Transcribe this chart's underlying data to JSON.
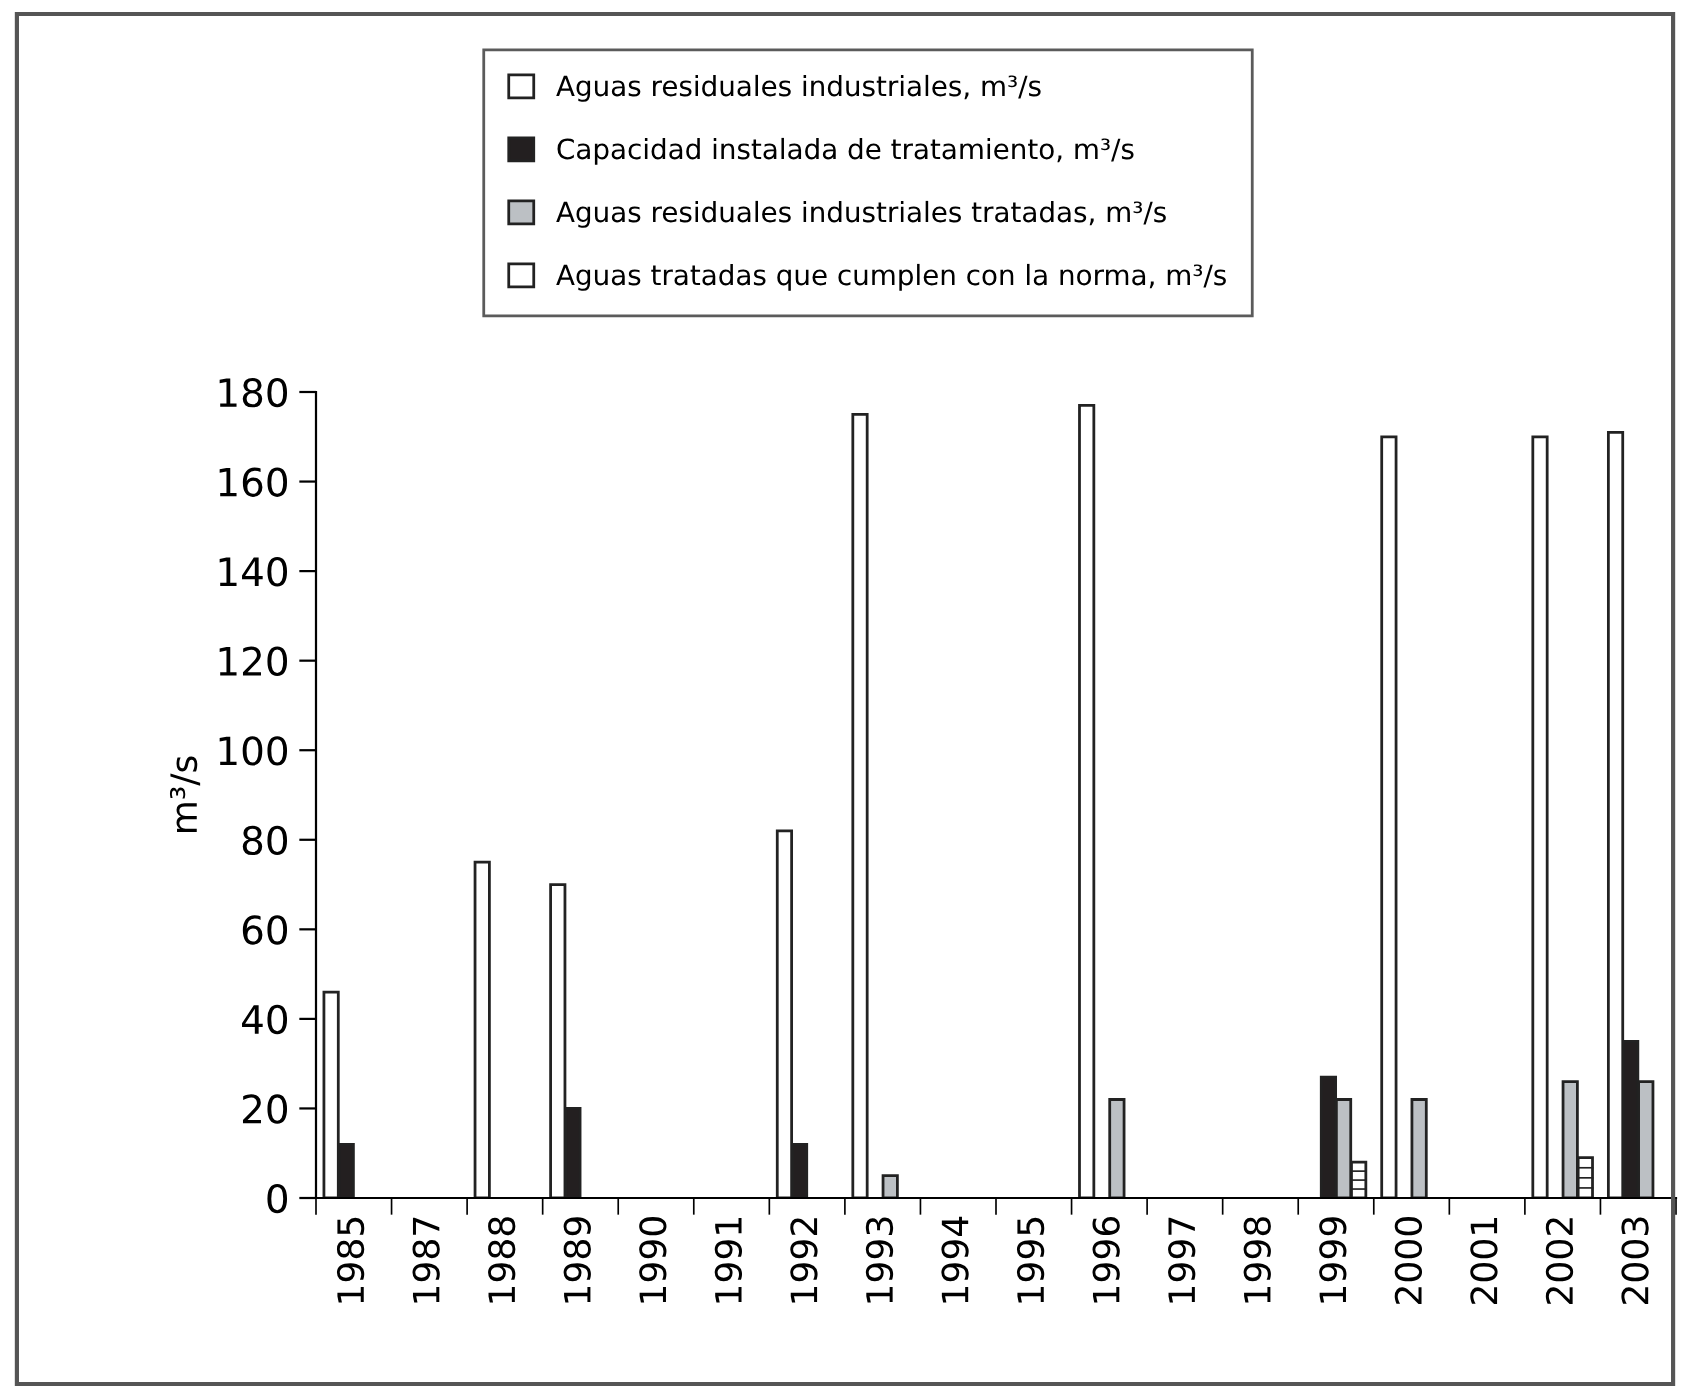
{
  "chart_data": {
    "type": "bar",
    "ylabel": "m³/s",
    "categories": [
      "1985",
      "1987",
      "1988",
      "1989",
      "1990",
      "1991",
      "1992",
      "1993",
      "1994",
      "1995",
      "1996",
      "1997",
      "1998",
      "1999",
      "2000",
      "2001",
      "2002",
      "2003"
    ],
    "series": [
      {
        "name": "Aguas residuales industriales, m³/s",
        "color": "#ffffff",
        "values": [
          46,
          null,
          75,
          70,
          null,
          null,
          82,
          175,
          null,
          null,
          177,
          null,
          null,
          null,
          170,
          null,
          170,
          171
        ]
      },
      {
        "name": "Capacidad instalada de tratamiento, m³/s",
        "color": "#231f20",
        "values": [
          12,
          null,
          null,
          20,
          null,
          null,
          12,
          null,
          null,
          null,
          null,
          null,
          null,
          27,
          null,
          null,
          null,
          35
        ]
      },
      {
        "name": "Aguas residuales industriales tratadas, m³/s",
        "color": "#bcc0c4",
        "values": [
          null,
          null,
          null,
          null,
          null,
          null,
          null,
          5,
          null,
          null,
          22,
          null,
          null,
          22,
          22,
          null,
          26,
          26
        ]
      },
      {
        "name": "Aguas tratadas que cumplen con la norma, m³/s",
        "color": "#ffffff",
        "values": [
          null,
          null,
          null,
          null,
          null,
          null,
          null,
          null,
          null,
          null,
          null,
          null,
          null,
          8,
          null,
          null,
          9,
          null
        ]
      }
    ],
    "ylim": [
      0,
      180
    ],
    "yticks": [
      0,
      20,
      40,
      60,
      80,
      100,
      120,
      140,
      160,
      180
    ],
    "grid": false,
    "legend": "top"
  }
}
